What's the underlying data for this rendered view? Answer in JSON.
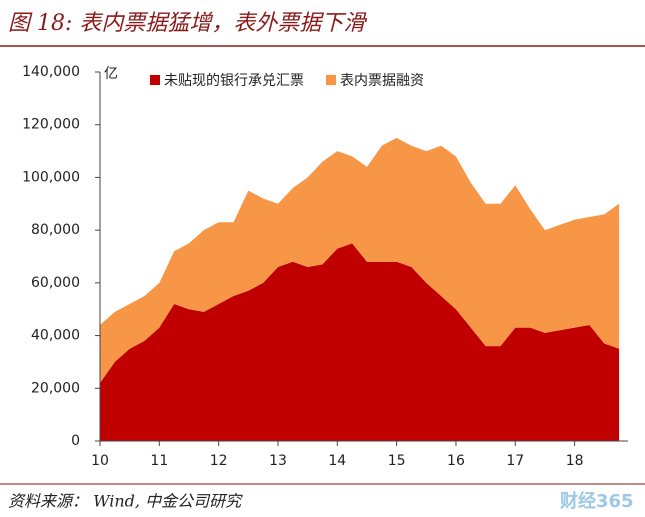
{
  "chart_data": {
    "type": "stacked_area",
    "title": "图 18: 表内票据猛增，表外票据下滑",
    "y_unit": "亿",
    "source": "资料来源： Wind, 中金公司研究",
    "watermark": "财经365",
    "categories": [
      "10",
      null,
      null,
      null,
      "11",
      null,
      null,
      null,
      "12",
      null,
      null,
      null,
      "13",
      null,
      null,
      null,
      "14",
      null,
      null,
      null,
      "15",
      null,
      null,
      null,
      "16",
      null,
      null,
      null,
      "17",
      null,
      null,
      null,
      "18",
      null,
      null,
      null
    ],
    "series": [
      {
        "name": "未贴现的银行承兑汇票",
        "color": "#c00000",
        "values": [
          22000,
          30000,
          35000,
          38000,
          43000,
          52000,
          50000,
          49000,
          52000,
          55000,
          57000,
          60000,
          66000,
          68000,
          66000,
          67000,
          73000,
          75000,
          68000,
          68000,
          68000,
          66000,
          60000,
          55000,
          50000,
          43000,
          36000,
          36000,
          43000,
          43000,
          41000,
          42000,
          43000,
          44000,
          37000,
          35000
        ]
      },
      {
        "name": "表内票据融资",
        "color": "#f79646",
        "values": [
          22000,
          19000,
          17000,
          17000,
          17000,
          20000,
          25000,
          31000,
          31000,
          28000,
          38000,
          32000,
          24000,
          28000,
          34000,
          39000,
          37000,
          33000,
          36000,
          44000,
          47000,
          46000,
          50000,
          57000,
          58000,
          55000,
          54000,
          54000,
          54000,
          45000,
          39000,
          40000,
          41000,
          41000,
          49000,
          55000
        ]
      }
    ],
    "ylim": [
      0,
      140000
    ],
    "yticks": [
      0,
      {
        "value": 20000,
        "label": "20,000"
      },
      {
        "value": 40000,
        "label": "40,000"
      },
      {
        "value": 60000,
        "label": "60,000"
      },
      {
        "value": 80000,
        "label": "80,000"
      },
      {
        "value": 100000,
        "label": "100,000"
      },
      {
        "value": 120000,
        "label": "120,000"
      },
      {
        "value": 140000,
        "label": "140,000"
      }
    ]
  }
}
